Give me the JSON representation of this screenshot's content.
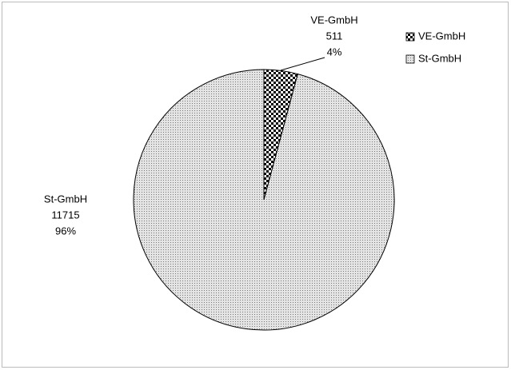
{
  "chart_data": {
    "type": "pie",
    "categories": [
      "VE-GmbH",
      "St-GmbH"
    ],
    "values": [
      511,
      11715
    ],
    "percents": [
      4,
      96
    ],
    "percent_labels": [
      "4%",
      "96%"
    ],
    "legend": "top-right"
  }
}
